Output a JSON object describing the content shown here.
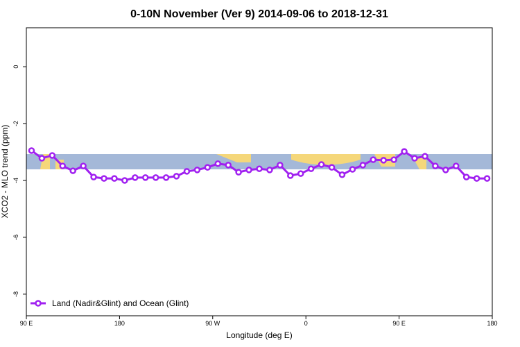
{
  "chart_data": {
    "type": "line",
    "title": "0-10N November (Ver 9)   2014-09-06 to 2018-12-31",
    "xlabel": "Longitude (deg E)",
    "ylabel": "XCO2 - MLO trend (ppm)",
    "x": [
      95,
      105,
      115,
      125,
      135,
      145,
      155,
      165,
      175,
      185,
      195,
      205,
      215,
      225,
      235,
      245,
      255,
      265,
      275,
      285,
      295,
      305,
      315,
      325,
      335,
      345,
      355,
      365,
      375,
      385,
      395,
      405,
      415,
      425,
      435,
      445,
      455,
      465,
      475,
      485,
      495,
      505,
      515,
      525,
      535
    ],
    "series": [
      {
        "name": "Land (Nadir&Glint) and Ocean (Glint)",
        "color": "#a020f0",
        "values": [
          -2.95,
          -3.22,
          -3.12,
          -3.49,
          -3.66,
          -3.49,
          -3.88,
          -3.93,
          -3.93,
          -4.0,
          -3.9,
          -3.9,
          -3.9,
          -3.9,
          -3.85,
          -3.68,
          -3.63,
          -3.54,
          -3.41,
          -3.46,
          -3.71,
          -3.63,
          -3.59,
          -3.63,
          -3.46,
          -3.83,
          -3.76,
          -3.59,
          -3.44,
          -3.54,
          -3.8,
          -3.61,
          -3.46,
          -3.27,
          -3.29,
          -3.27,
          -2.98,
          -3.22,
          -3.15,
          -3.49,
          -3.63,
          -3.49,
          -3.88,
          -3.93,
          -3.93
        ]
      }
    ],
    "xlim": [
      90,
      540
    ],
    "xticks": [
      {
        "value": 90,
        "label": "90 E"
      },
      180,
      {
        "value": 270,
        "label": "90 W"
      },
      {
        "value": 360,
        "label": "0"
      },
      {
        "value": 450,
        "label": "90 E"
      },
      {
        "value": 540,
        "label": "180"
      }
    ],
    "ylim": [
      -8.76,
      1.37
    ],
    "yticks": [
      0,
      -2,
      -4,
      -6,
      -8
    ],
    "legend": "bottom-left"
  }
}
